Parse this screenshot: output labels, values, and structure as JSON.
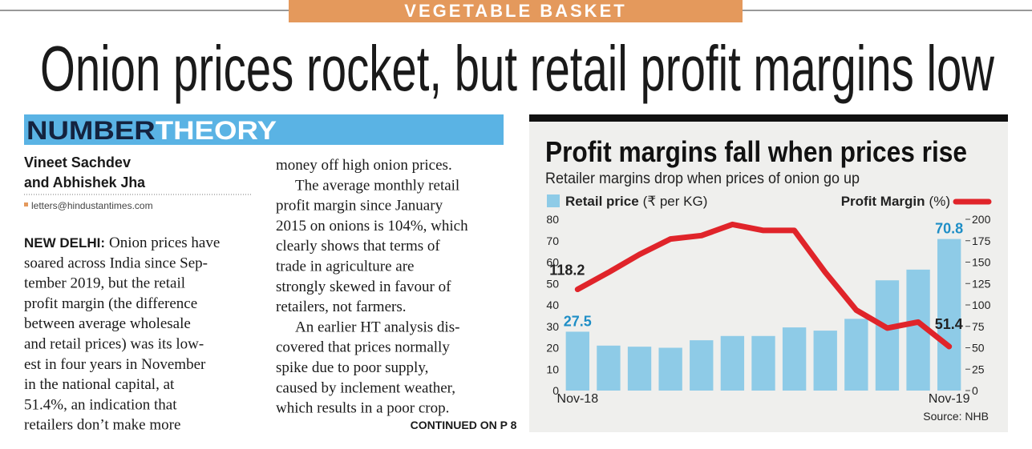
{
  "banner": "VEGETABLE BASKET",
  "headline": "Onion prices rocket, but retail profit margins low",
  "section": {
    "number": "NUMBER",
    "theory": "THEORY"
  },
  "byline": {
    "author1": "Vineet Sachdev",
    "author2": "and Abhishek Jha",
    "email": "letters@hindustantimes.com"
  },
  "article": {
    "dateline": "NEW DELHI:",
    "column1": [
      [
        "Onion prices have",
        "soared across India since Sep-",
        "tember 2019, but the retail",
        "profit margin (the difference",
        "between average wholesale",
        "and retail prices) was its low-",
        "est in four years in November",
        "in the national capital, at",
        "51.4%, an indication that",
        "retailers don’t make more"
      ]
    ],
    "column2": [
      [
        "money off high onion prices."
      ],
      [
        "The average monthly retail",
        "profit margin since January",
        "2015 on onions is 104%, which",
        "clearly shows that terms of",
        "trade in agriculture are",
        "strongly skewed in favour of",
        "retailers, not farmers."
      ],
      [
        "An earlier HT analysis dis-",
        "covered that prices normally",
        "spike due to poor supply,",
        "caused by inclement weather,",
        "which results in a poor crop."
      ]
    ],
    "continued": "CONTINUED ON P 8"
  },
  "chart_data": {
    "type": "bar",
    "title": "Profit margins fall when prices rise",
    "subtitle": "Retailer margins drop when prices of onion go up",
    "source": "Source: NHB",
    "categories": [
      "Nov-18",
      null,
      null,
      null,
      null,
      null,
      null,
      null,
      null,
      null,
      null,
      null,
      "Nov-19"
    ],
    "series": [
      {
        "name": "Retail price",
        "unit": "(₹ per KG)",
        "type": "bar",
        "color": "#8ecbe7",
        "label_color": "#1e8ec6",
        "values": [
          27.5,
          21,
          20.5,
          20,
          23.5,
          25.5,
          25.5,
          29.5,
          28,
          33.5,
          51.5,
          56.5,
          70.8
        ],
        "value_labels": [
          "27.5",
          null,
          null,
          null,
          null,
          null,
          null,
          null,
          null,
          null,
          null,
          null,
          "70.8"
        ]
      },
      {
        "name": "Profit Margin",
        "unit": "(%)",
        "type": "line",
        "axis": "y2",
        "color": "#e0242a",
        "label_color": "#222222",
        "values": [
          118.2,
          138,
          159,
          177,
          181,
          194,
          187,
          187,
          138,
          94,
          73,
          80,
          51.4
        ],
        "value_labels": [
          "118.2",
          null,
          null,
          null,
          null,
          null,
          null,
          null,
          null,
          null,
          null,
          null,
          "51.4"
        ]
      }
    ],
    "ylim": [
      0,
      80
    ],
    "yticks": [
      0,
      10,
      20,
      30,
      40,
      50,
      60,
      70,
      80
    ],
    "y2lim": [
      0,
      200
    ],
    "y2ticks": [
      0,
      25,
      50,
      75,
      100,
      125,
      150,
      175,
      200
    ],
    "grid": false
  }
}
